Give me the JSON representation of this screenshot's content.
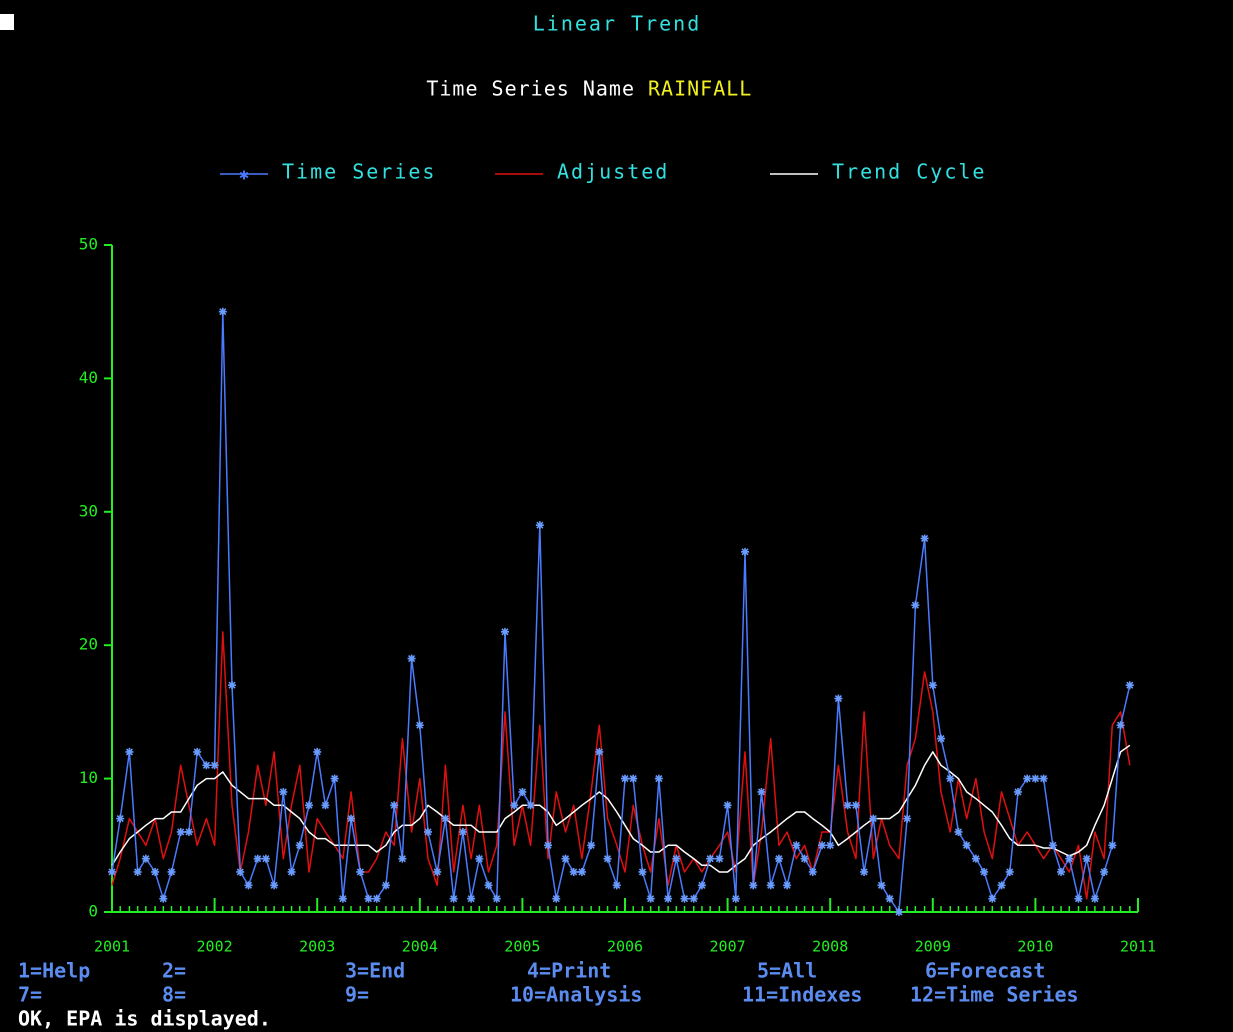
{
  "chart_data": {
    "type": "line",
    "title": "Linear Trend",
    "subtitle_label": "Time Series Name",
    "subtitle_value": "RAINFALL",
    "x": [
      2001,
      2001.08,
      2001.17,
      2001.25,
      2001.33,
      2001.42,
      2001.5,
      2001.58,
      2001.67,
      2001.75,
      2001.83,
      2001.92,
      2002,
      2002.08,
      2002.17,
      2002.25,
      2002.33,
      2002.42,
      2002.5,
      2002.58,
      2002.67,
      2002.75,
      2002.83,
      2002.92,
      2003,
      2003.08,
      2003.17,
      2003.25,
      2003.33,
      2003.42,
      2003.5,
      2003.58,
      2003.67,
      2003.75,
      2003.83,
      2003.92,
      2004,
      2004.08,
      2004.17,
      2004.25,
      2004.33,
      2004.42,
      2004.5,
      2004.58,
      2004.67,
      2004.75,
      2004.83,
      2004.92,
      2005,
      2005.08,
      2005.17,
      2005.25,
      2005.33,
      2005.42,
      2005.5,
      2005.58,
      2005.67,
      2005.75,
      2005.83,
      2005.92,
      2006,
      2006.08,
      2006.17,
      2006.25,
      2006.33,
      2006.42,
      2006.5,
      2006.58,
      2006.67,
      2006.75,
      2006.83,
      2006.92,
      2007,
      2007.08,
      2007.17,
      2007.25,
      2007.33,
      2007.42,
      2007.5,
      2007.58,
      2007.67,
      2007.75,
      2007.83,
      2007.92,
      2008,
      2008.08,
      2008.17,
      2008.25,
      2008.33,
      2008.42,
      2008.5,
      2008.58,
      2008.67,
      2008.75,
      2008.83,
      2008.92,
      2009,
      2009.08,
      2009.17,
      2009.25,
      2009.33,
      2009.42,
      2009.5,
      2009.58,
      2009.67,
      2009.75,
      2009.83,
      2009.92,
      2010,
      2010.08,
      2010.17,
      2010.25,
      2010.33,
      2010.42,
      2010.5,
      2010.58,
      2010.67,
      2010.75,
      2010.83,
      2010.92
    ],
    "series": [
      {
        "name": "Time Series",
        "color": "#4a7bff",
        "marker": "star",
        "values": [
          3,
          7,
          12,
          3,
          4,
          3,
          1,
          3,
          6,
          6,
          12,
          11,
          11,
          45,
          17,
          3,
          2,
          4,
          4,
          2,
          9,
          3,
          5,
          8,
          12,
          8,
          10,
          1,
          7,
          3,
          1,
          1,
          2,
          8,
          4,
          19,
          14,
          6,
          3,
          7,
          1,
          6,
          1,
          4,
          2,
          1,
          21,
          8,
          9,
          8,
          29,
          5,
          1,
          4,
          3,
          3,
          5,
          12,
          4,
          2,
          10,
          10,
          3,
          1,
          10,
          1,
          4,
          1,
          1,
          2,
          4,
          4,
          8,
          1,
          27,
          2,
          9,
          2,
          4,
          2,
          5,
          4,
          3,
          5,
          5,
          16,
          8,
          8,
          3,
          7,
          2,
          1,
          0,
          7,
          23,
          28,
          17,
          13,
          10,
          6,
          5,
          4,
          3,
          1,
          2,
          3,
          9,
          10,
          10,
          10,
          5,
          3,
          4,
          1,
          4,
          1,
          3,
          5,
          14,
          17
        ]
      },
      {
        "name": "Adjusted",
        "color": "#e01010",
        "values": [
          2,
          4,
          7,
          6,
          5,
          7,
          4,
          6,
          11,
          8,
          5,
          7,
          5,
          21,
          8,
          3,
          6,
          11,
          8,
          12,
          4,
          8,
          11,
          3,
          7,
          6,
          5,
          4,
          9,
          3,
          3,
          4,
          6,
          5,
          13,
          6,
          10,
          4,
          2,
          11,
          3,
          8,
          4,
          8,
          3,
          5,
          15,
          5,
          8,
          5,
          14,
          4,
          9,
          6,
          8,
          4,
          9,
          14,
          7,
          5,
          3,
          8,
          5,
          3,
          7,
          2,
          5,
          3,
          4,
          3,
          4,
          5,
          6,
          3,
          12,
          2,
          6,
          13,
          5,
          6,
          4,
          5,
          3,
          6,
          6,
          11,
          6,
          4,
          15,
          4,
          7,
          5,
          4,
          11,
          13,
          18,
          15,
          9,
          6,
          10,
          7,
          10,
          6,
          4,
          9,
          7,
          5,
          6,
          5,
          4,
          5,
          4,
          3,
          5,
          1,
          6,
          4,
          14,
          15,
          11
        ]
      },
      {
        "name": "Trend Cycle",
        "color": "#ffffff",
        "values": [
          3.5,
          4.5,
          5.5,
          6,
          6.5,
          7,
          7,
          7.5,
          7.5,
          8.5,
          9.5,
          10,
          10,
          10.5,
          9.5,
          9,
          8.5,
          8.5,
          8.5,
          8,
          8,
          7.5,
          7,
          6,
          5.5,
          5.5,
          5,
          5,
          5,
          5,
          5,
          4.5,
          5,
          6,
          6.5,
          6.5,
          7,
          8,
          7.5,
          7,
          6.5,
          6.5,
          6.5,
          6,
          6,
          6,
          7,
          7.5,
          8,
          8,
          8,
          7.5,
          6.5,
          7,
          7.5,
          8,
          8.5,
          9,
          8.5,
          7.5,
          6.5,
          5.5,
          5,
          4.5,
          4.5,
          5,
          5,
          4.5,
          4,
          3.5,
          3.5,
          3,
          3,
          3.5,
          4,
          5,
          5.5,
          6,
          6.5,
          7,
          7.5,
          7.5,
          7,
          6.5,
          6,
          5,
          5.5,
          6,
          6.5,
          7,
          7,
          7,
          7.5,
          8.5,
          9.5,
          11,
          12,
          11,
          10.5,
          10,
          9,
          8.5,
          8,
          7.5,
          6.5,
          5.5,
          5,
          5,
          5,
          4.8,
          4.8,
          4.5,
          4.2,
          4.5,
          5,
          6.5,
          8,
          10,
          12,
          12.5
        ]
      }
    ],
    "xlim": [
      2001,
      2011
    ],
    "xticks": [
      2001,
      2002,
      2003,
      2004,
      2005,
      2006,
      2007,
      2008,
      2009,
      2010,
      2011
    ],
    "ylim": [
      0,
      50
    ],
    "yticks": [
      0,
      10,
      20,
      30,
      40,
      50
    ],
    "axis_color": "#22ee22",
    "legend": "top"
  },
  "function_keys": [
    [
      "1=Help",
      "2=",
      "3=End",
      "4=Print",
      "5=All",
      "6=Forecast"
    ],
    [
      "7=",
      "8=",
      "9=",
      "10=Analysis",
      "11=Indexes",
      "12=Time Series"
    ]
  ],
  "status": "OK, EPA is displayed."
}
